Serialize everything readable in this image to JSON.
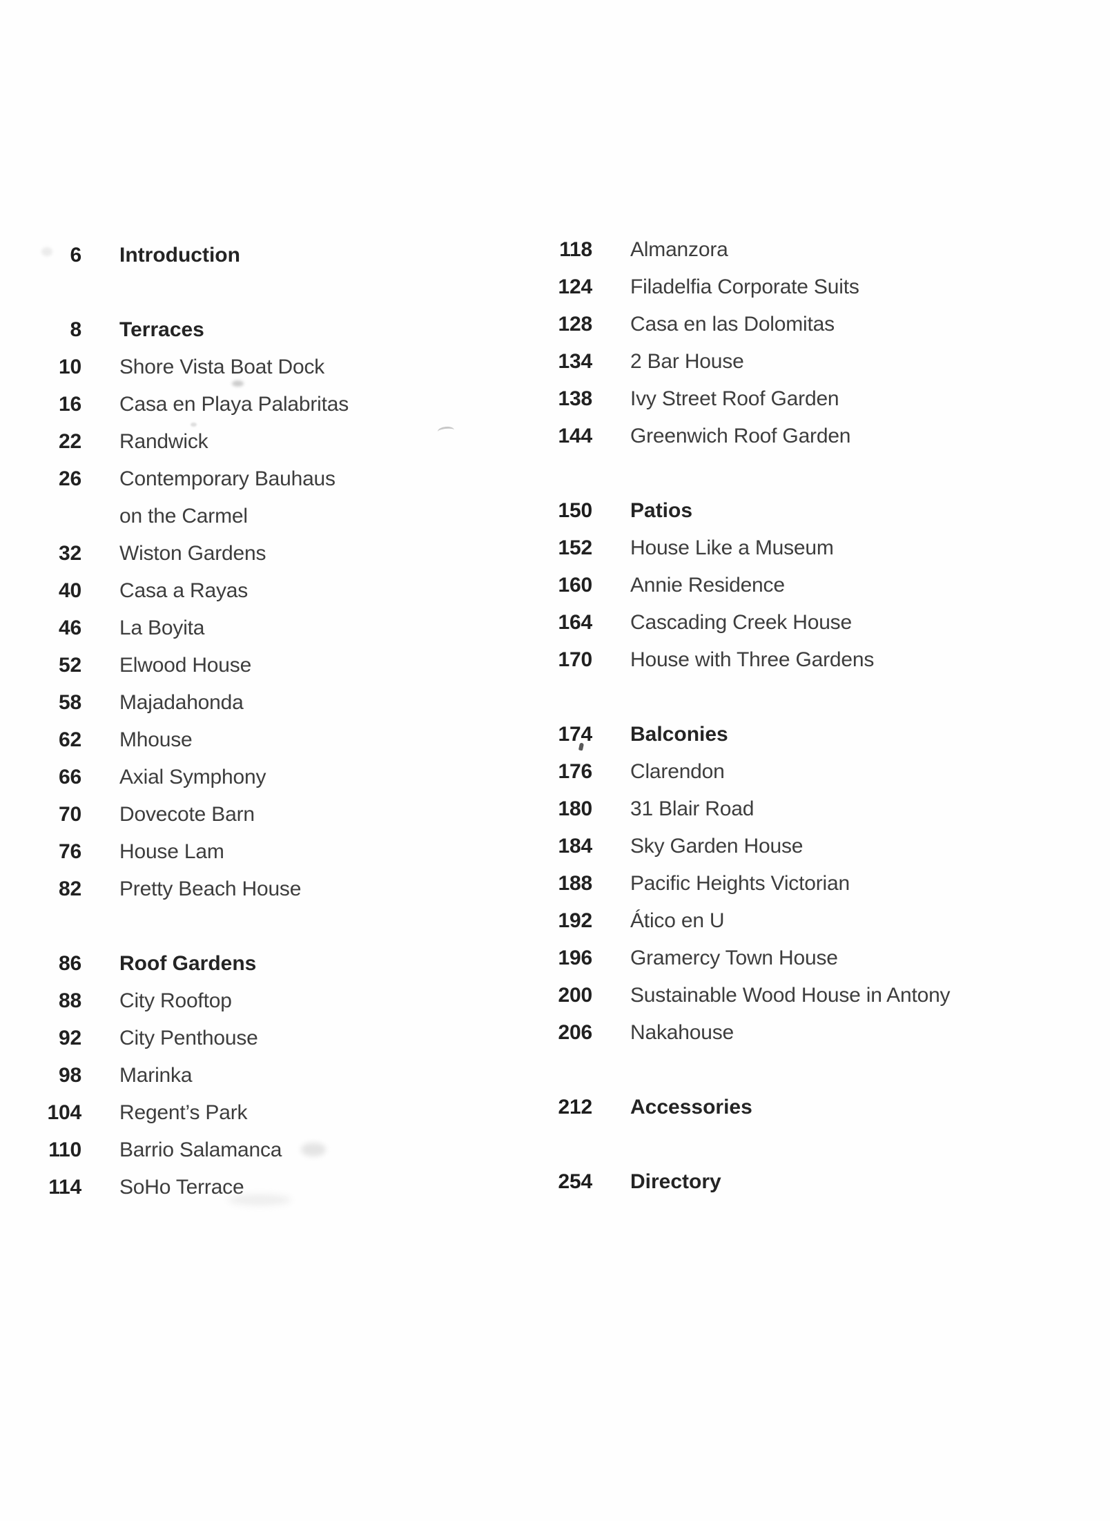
{
  "document": {
    "kind": "book-table-of-contents-scan",
    "colors": {
      "background": "#fefefe",
      "page_number_text": "#212121",
      "entry_text": "#3d3d3d",
      "section_text": "#242424"
    },
    "toc": {
      "left_column": [
        {
          "page": "6",
          "title": "Introduction",
          "style": "section"
        },
        {
          "style": "gap"
        },
        {
          "page": "8",
          "title": "Terraces",
          "style": "section"
        },
        {
          "page": "10",
          "title": "Shore Vista Boat Dock",
          "style": "entry"
        },
        {
          "page": "16",
          "title": "Casa en Playa Palabritas",
          "style": "entry"
        },
        {
          "page": "22",
          "title": "Randwick",
          "style": "entry"
        },
        {
          "page": "26",
          "title": "Contemporary Bauhaus",
          "style": "entry"
        },
        {
          "page": "",
          "title": "on the Carmel",
          "style": "cont"
        },
        {
          "page": "32",
          "title": "Wiston Gardens",
          "style": "entry"
        },
        {
          "page": "40",
          "title": "Casa a Rayas",
          "style": "entry"
        },
        {
          "page": "46",
          "title": "La Boyita",
          "style": "entry"
        },
        {
          "page": "52",
          "title": "Elwood House",
          "style": "entry"
        },
        {
          "page": "58",
          "title": "Majadahonda",
          "style": "entry"
        },
        {
          "page": "62",
          "title": "Mhouse",
          "style": "entry"
        },
        {
          "page": "66",
          "title": "Axial Symphony",
          "style": "entry"
        },
        {
          "page": "70",
          "title": "Dovecote Barn",
          "style": "entry"
        },
        {
          "page": "76",
          "title": "House Lam",
          "style": "entry"
        },
        {
          "page": "82",
          "title": "Pretty Beach House",
          "style": "entry"
        },
        {
          "style": "gap"
        },
        {
          "page": "86",
          "title": "Roof Gardens",
          "style": "section"
        },
        {
          "page": "88",
          "title": "City Rooftop",
          "style": "entry"
        },
        {
          "page": "92",
          "title": "City Penthouse",
          "style": "entry"
        },
        {
          "page": "98",
          "title": "Marinka",
          "style": "entry"
        },
        {
          "page": "104",
          "title": "Regent’s Park",
          "style": "entry"
        },
        {
          "page": "110",
          "title": "Barrio Salamanca",
          "style": "entry"
        },
        {
          "page": "114",
          "title": "SoHo Terrace",
          "style": "entry"
        }
      ],
      "right_column": [
        {
          "page": "118",
          "title": "Almanzora",
          "style": "entry"
        },
        {
          "page": "124",
          "title": "Filadelfia Corporate Suits",
          "style": "entry"
        },
        {
          "page": "128",
          "title": "Casa en las Dolomitas",
          "style": "entry"
        },
        {
          "page": "134",
          "title": "2 Bar House",
          "style": "entry"
        },
        {
          "page": "138",
          "title": "Ivy Street Roof Garden",
          "style": "entry"
        },
        {
          "page": "144",
          "title": "Greenwich Roof Garden",
          "style": "entry"
        },
        {
          "style": "gap"
        },
        {
          "page": "150",
          "title": "Patios",
          "style": "section"
        },
        {
          "page": "152",
          "title": "House Like a Museum",
          "style": "entry"
        },
        {
          "page": "160",
          "title": "Annie Residence",
          "style": "entry"
        },
        {
          "page": "164",
          "title": "Cascading Creek House",
          "style": "entry"
        },
        {
          "page": "170",
          "title": "House with Three Gardens",
          "style": "entry"
        },
        {
          "style": "gap"
        },
        {
          "page": "174",
          "title": "Balconies",
          "style": "section"
        },
        {
          "page": "176",
          "title": "Clarendon",
          "style": "entry"
        },
        {
          "page": "180",
          "title": "31 Blair Road",
          "style": "entry"
        },
        {
          "page": "184",
          "title": "Sky Garden House",
          "style": "entry"
        },
        {
          "page": "188",
          "title": "Pacific Heights Victorian",
          "style": "entry"
        },
        {
          "page": "192",
          "title": "Ático en U",
          "style": "entry"
        },
        {
          "page": "196",
          "title": "Gramercy Town House",
          "style": "entry"
        },
        {
          "page": "200",
          "title": "Sustainable Wood House in Antony",
          "style": "entry"
        },
        {
          "page": "206",
          "title": "Nakahouse",
          "style": "entry"
        },
        {
          "style": "gap"
        },
        {
          "page": "212",
          "title": "Accessories",
          "style": "section"
        },
        {
          "style": "gap"
        },
        {
          "page": "254",
          "title": "Directory",
          "style": "section"
        }
      ]
    }
  }
}
